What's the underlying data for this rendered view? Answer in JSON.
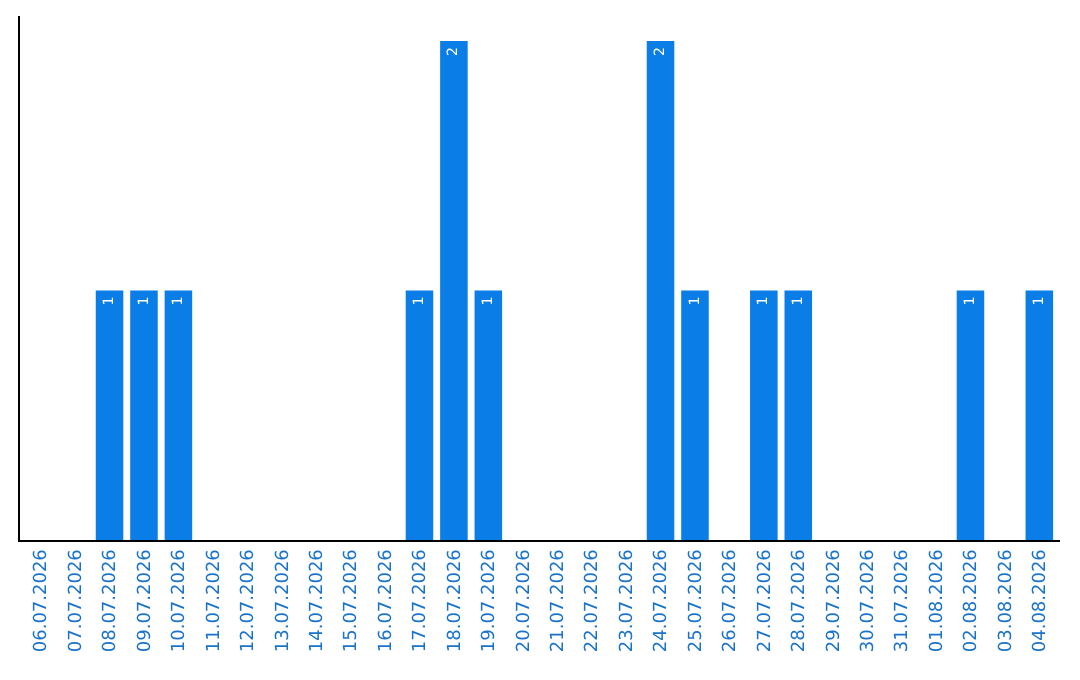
{
  "chart_data": {
    "type": "bar",
    "categories": [
      "06.07.2026",
      "07.07.2026",
      "08.07.2026",
      "09.07.2026",
      "10.07.2026",
      "11.07.2026",
      "12.07.2026",
      "13.07.2026",
      "14.07.2026",
      "15.07.2026",
      "16.07.2026",
      "17.07.2026",
      "18.07.2026",
      "19.07.2026",
      "20.07.2026",
      "21.07.2026",
      "22.07.2026",
      "23.07.2026",
      "24.07.2026",
      "25.07.2026",
      "26.07.2026",
      "27.07.2026",
      "28.07.2026",
      "29.07.2026",
      "30.07.2026",
      "31.07.2026",
      "01.08.2026",
      "02.08.2026",
      "03.08.2026",
      "04.08.2026"
    ],
    "values": [
      0,
      0,
      1,
      1,
      1,
      0,
      0,
      0,
      0,
      0,
      0,
      1,
      2,
      1,
      0,
      0,
      0,
      0,
      2,
      1,
      0,
      1,
      1,
      0,
      0,
      0,
      0,
      1,
      0,
      1
    ],
    "value_labels": [
      null,
      null,
      "1",
      "1",
      "1",
      null,
      null,
      null,
      null,
      null,
      null,
      "1",
      "2",
      "1",
      null,
      null,
      null,
      null,
      "2",
      "1",
      null,
      "1",
      "1",
      null,
      null,
      null,
      null,
      "1",
      null,
      "1"
    ],
    "color": "#0a7de6",
    "ylim": [
      0,
      2.1
    ],
    "tick_labels": "x",
    "legend": false
  }
}
